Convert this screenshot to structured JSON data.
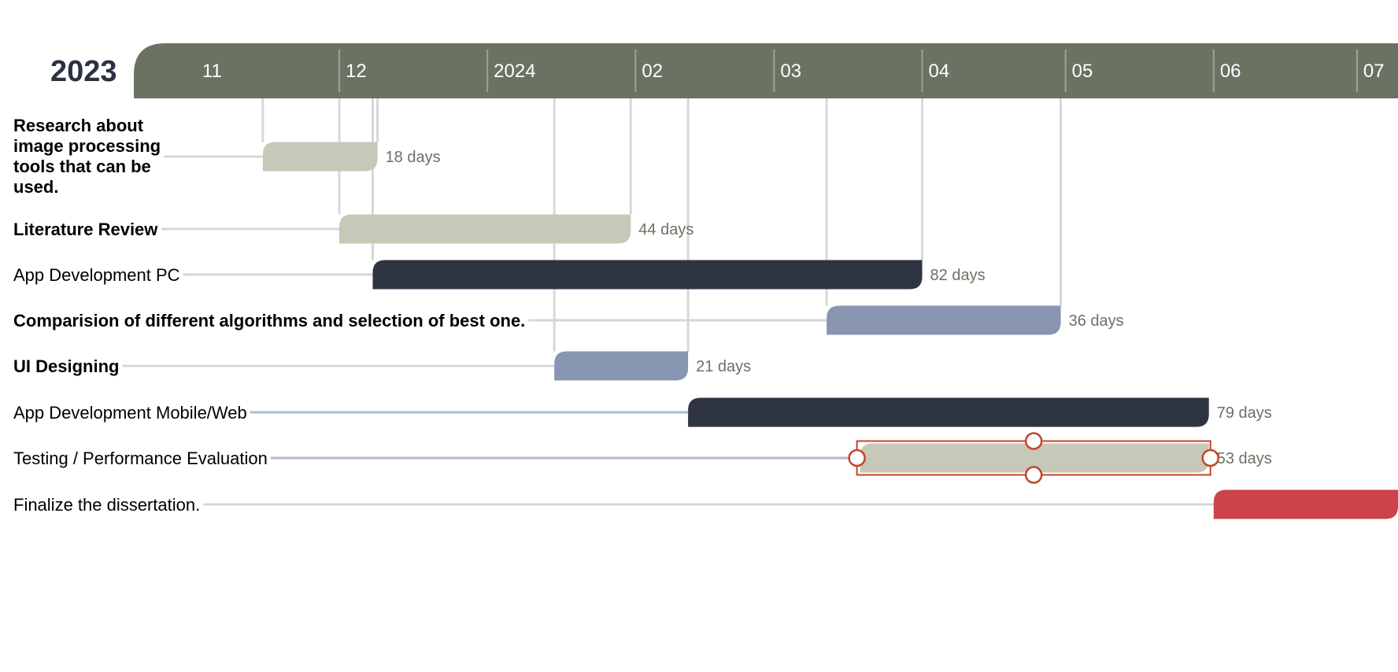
{
  "chart_data": {
    "type": "gantt",
    "year_label": "2023",
    "months": [
      {
        "label": "11",
        "date": "2023-11-01"
      },
      {
        "label": "12",
        "date": "2023-12-01"
      },
      {
        "label": "2024",
        "date": "2024-01-01"
      },
      {
        "label": "02",
        "date": "2024-02-01"
      },
      {
        "label": "03",
        "date": "2024-03-01"
      },
      {
        "label": "04",
        "date": "2024-04-01"
      },
      {
        "label": "05",
        "date": "2024-05-01"
      },
      {
        "label": "06",
        "date": "2024-06-01"
      },
      {
        "label": "07",
        "date": "2024-07-01"
      }
    ],
    "x_range": [
      "2023-10-19",
      "2024-07-15"
    ],
    "tasks": [
      {
        "label": "Research about image processing tools that can be used.",
        "label_lines": [
          "Research about",
          "image processing",
          "tools that can be",
          "used."
        ],
        "start": "2023-11-15",
        "end": "2023-12-09",
        "duration": "18 days",
        "color": "#c7c8b7",
        "bold": true
      },
      {
        "label": "Literature Review",
        "start": "2023-12-01",
        "end": "2024-01-31",
        "duration": "44 days",
        "color": "#c7c8b7",
        "bold": true
      },
      {
        "label": "App Development PC",
        "start": "2023-12-08",
        "end": "2024-04-01",
        "duration": "82 days",
        "color": "#2f3443",
        "bold": false
      },
      {
        "label": "Comparision of different algorithms and selection of best one.",
        "start": "2024-03-12",
        "end": "2024-04-30",
        "duration": "36 days",
        "color": "#8896b1",
        "bold": true
      },
      {
        "label": "UI Designing",
        "start": "2024-01-15",
        "end": "2024-02-12",
        "duration": "21 days",
        "color": "#8896b1",
        "bold": true
      },
      {
        "label": "App Development Mobile/Web",
        "start": "2024-02-12",
        "end": "2024-05-31",
        "duration": "79 days",
        "color": "#2f3443",
        "bold": false
      },
      {
        "label": "Testing / Performance Evaluation",
        "start": "2024-03-19",
        "end": "2024-05-31",
        "duration": "53 days",
        "color": "#c7c8b7",
        "bold": false,
        "selected": true
      },
      {
        "label": "Finalize the dissertation.",
        "start": "2024-06-01",
        "end": "2024-07-31",
        "duration": "",
        "color": "#cc4349",
        "bold": false
      }
    ],
    "colors": {
      "header": "#6a7262",
      "header_text": "#ffffff",
      "year_text": "#2c3142",
      "duration_text": "#6a7262",
      "selection": "#c2452d"
    }
  }
}
